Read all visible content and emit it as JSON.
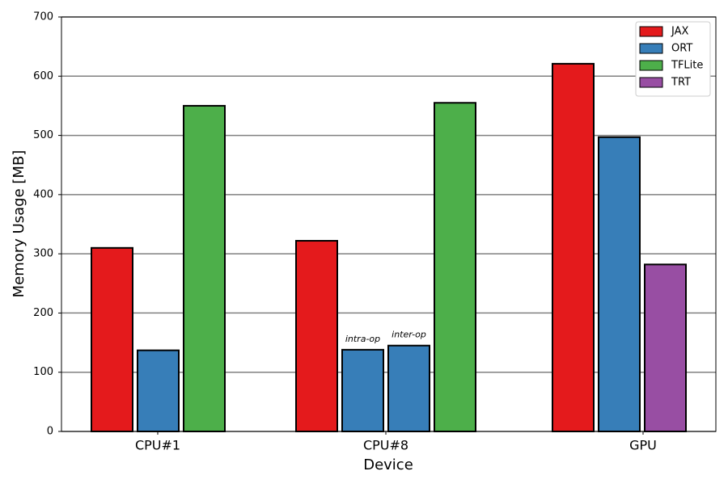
{
  "chart_data": {
    "type": "grouped-bar",
    "xlabel": "Device",
    "ylabel": "Memory Usage [MB]",
    "ylim": [
      0,
      700
    ],
    "yticks": [
      0,
      100,
      200,
      300,
      400,
      500,
      600,
      700
    ],
    "grid": true,
    "legend_position": "upper-right",
    "series": [
      {
        "name": "JAX",
        "color": "#e41a1c"
      },
      {
        "name": "ORT",
        "color": "#377eb8"
      },
      {
        "name": "TFLite",
        "color": "#4daf4a"
      },
      {
        "name": "TRT",
        "color": "#984ea3"
      }
    ],
    "groups": [
      {
        "name": "CPU#1",
        "bars": [
          {
            "series": "JAX",
            "value": 310
          },
          {
            "series": "ORT",
            "value": 137
          },
          {
            "series": "TFLite",
            "value": 550
          }
        ]
      },
      {
        "name": "CPU#8",
        "bars": [
          {
            "series": "JAX",
            "value": 322
          },
          {
            "series": "ORT",
            "value": 138,
            "label": "intra-op"
          },
          {
            "series": "ORT",
            "value": 145,
            "label": "inter-op"
          },
          {
            "series": "TFLite",
            "value": 555
          }
        ]
      },
      {
        "name": "GPU",
        "bars": [
          {
            "series": "JAX",
            "value": 621
          },
          {
            "series": "ORT",
            "value": 497
          },
          {
            "series": "TRT",
            "value": 282
          }
        ]
      }
    ]
  }
}
